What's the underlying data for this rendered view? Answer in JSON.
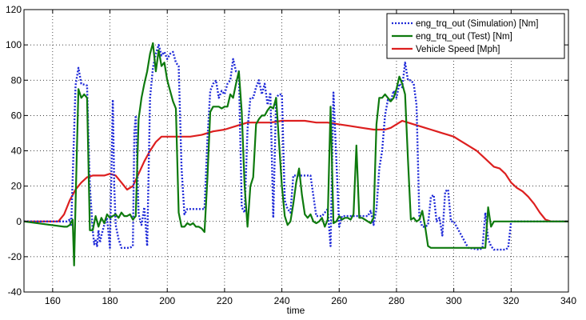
{
  "chart_data": {
    "type": "line",
    "xlabel": "time",
    "ylabel": "",
    "title": "",
    "xlim": [
      150,
      340
    ],
    "ylim": [
      -40,
      120
    ],
    "xticks": [
      160,
      180,
      200,
      220,
      240,
      260,
      280,
      300,
      320,
      340
    ],
    "yticks": [
      -40,
      -20,
      0,
      20,
      40,
      60,
      80,
      100,
      120
    ],
    "grid": true,
    "legend_position": "top-right",
    "series": [
      {
        "name": "eng_trq_out (Simulation) [Nm]",
        "color": "#1f2ad8",
        "style": "dotted",
        "x": [
          150,
          165,
          166,
          166.5,
          168,
          169,
          170,
          172,
          173,
          174,
          174.5,
          175,
          175.5,
          176,
          176.5,
          177,
          178,
          179,
          180,
          181,
          181.5,
          182,
          183,
          184,
          185,
          186,
          187,
          188,
          188.5,
          189,
          190,
          191,
          192,
          193,
          194,
          195,
          196,
          197,
          198,
          199,
          200,
          201,
          202,
          203,
          204,
          205,
          206,
          207,
          208,
          209,
          210,
          211,
          212,
          213,
          214,
          215,
          216,
          217,
          218,
          219,
          220,
          221,
          222,
          223,
          224,
          225,
          226,
          227,
          228,
          229,
          230,
          231,
          232,
          233,
          234,
          235,
          236,
          237,
          238,
          239,
          240,
          241,
          242,
          243,
          244,
          245,
          246,
          247,
          248,
          249,
          250,
          252,
          254,
          256,
          257,
          258,
          259,
          260,
          261,
          262,
          263,
          264,
          265,
          266,
          267,
          268,
          269,
          270,
          271,
          272,
          273,
          274,
          275,
          276,
          277,
          278,
          279,
          280,
          281,
          282,
          283,
          284,
          285,
          286,
          287,
          288,
          289,
          290,
          291,
          292,
          293,
          294,
          295,
          296,
          297,
          298,
          299,
          300,
          305,
          309,
          310,
          311,
          312,
          313,
          314,
          316,
          318,
          319,
          320,
          330,
          340
        ],
        "y": [
          0,
          0,
          1,
          -2,
          77,
          87,
          78,
          77,
          20,
          -5,
          -13,
          -10,
          -14,
          -5,
          -12,
          -8,
          -2,
          2,
          -15,
          69,
          20,
          -2,
          -10,
          -15,
          -15,
          -15,
          -15,
          -14,
          50,
          60,
          4,
          -2,
          8,
          -14,
          70,
          87,
          95,
          100,
          94,
          96,
          92,
          95,
          96,
          90,
          88,
          30,
          4,
          7,
          7,
          7,
          7,
          7,
          7,
          7,
          46,
          74,
          78,
          80,
          70,
          74,
          72,
          78,
          80,
          92,
          85,
          85,
          8,
          5,
          52,
          70,
          70,
          76,
          80,
          72,
          78,
          66,
          73,
          2,
          70,
          72,
          72,
          12,
          7,
          5,
          26,
          26,
          26,
          26,
          26,
          26,
          26,
          3,
          3,
          7,
          -14,
          73,
          35,
          -3,
          3,
          3,
          3,
          3,
          3,
          3,
          3,
          3,
          3,
          3,
          6,
          -2,
          7,
          30,
          40,
          60,
          69,
          68,
          74,
          70,
          78,
          76,
          90,
          80,
          80,
          78,
          66,
          2,
          -3,
          -3,
          -2,
          14,
          15,
          0,
          2,
          -8,
          17,
          18,
          0,
          0,
          -15,
          -16,
          -15,
          5,
          -10,
          -14,
          -16,
          -16,
          -16,
          -15,
          0,
          0,
          0
        ]
      },
      {
        "name": "eng_trq_out (Test) [Nm]",
        "color": "#0e7a0e",
        "style": "solid",
        "x": [
          150,
          164,
          165,
          166,
          167,
          167.5,
          168,
          169,
          170,
          171,
          172,
          173,
          174,
          175,
          176,
          177,
          178,
          179,
          180,
          181,
          182,
          183,
          184,
          185,
          186,
          187,
          188,
          189,
          190,
          191,
          192,
          193,
          194,
          195,
          196,
          197,
          198,
          199,
          200,
          201,
          202,
          203,
          204,
          205,
          206,
          207,
          208,
          209,
          210,
          211,
          212,
          213,
          214,
          215,
          216,
          217,
          218,
          219,
          220,
          221,
          222,
          223,
          224,
          225,
          226,
          227,
          228,
          229,
          230,
          231,
          232,
          233,
          234,
          235,
          236,
          237,
          238,
          239,
          240,
          241,
          242,
          243,
          244,
          245,
          246,
          247,
          248,
          249,
          250,
          251,
          252,
          253,
          254,
          255,
          256,
          257,
          258,
          259,
          260,
          261,
          262,
          263,
          264,
          265,
          266,
          267,
          268,
          269,
          270,
          271,
          272,
          273,
          274,
          275,
          276,
          277,
          278,
          279,
          280,
          281,
          282,
          283,
          284,
          285,
          286,
          287,
          288,
          289,
          290,
          291,
          292,
          293,
          294,
          295,
          296,
          297,
          298,
          299,
          300,
          305,
          309,
          310,
          311,
          312,
          313,
          314,
          320,
          330,
          340
        ],
        "y": [
          0,
          -3,
          -3,
          -2,
          1,
          -25,
          10,
          75,
          70,
          72,
          70,
          -5,
          -5,
          3,
          -3,
          2,
          -1,
          4,
          2,
          3,
          4,
          2,
          5,
          3,
          3,
          4,
          1,
          3,
          58,
          70,
          78,
          85,
          95,
          101,
          85,
          97,
          88,
          90,
          80,
          74,
          68,
          64,
          5,
          -3,
          -3,
          -1,
          -2,
          -1,
          -3,
          -3,
          -4,
          -6,
          24,
          62,
          65,
          65,
          65,
          64,
          65,
          65,
          72,
          70,
          78,
          85,
          62,
          20,
          -3,
          20,
          25,
          55,
          58,
          60,
          60,
          63,
          65,
          64,
          70,
          45,
          20,
          3,
          -2,
          0,
          10,
          22,
          30,
          15,
          4,
          2,
          4,
          0,
          -1,
          0,
          2,
          -3,
          1,
          65,
          -1,
          0,
          3,
          1,
          2,
          2,
          1,
          4,
          43,
          2,
          2,
          1,
          0,
          -1,
          2,
          55,
          70,
          70,
          72,
          70,
          68,
          70,
          75,
          82,
          78,
          72,
          35,
          1,
          2,
          0,
          1,
          6,
          -3,
          -14,
          -15,
          -15,
          -15,
          -15,
          -15,
          -15,
          -15,
          -15,
          -15,
          -15,
          -15,
          -15,
          -15,
          8,
          -3,
          0,
          0,
          0,
          0
        ]
      },
      {
        "name": "Vehicle Speed [Mph]",
        "color": "#dd1f1f",
        "style": "solid",
        "x": [
          150,
          162,
          164,
          166,
          168,
          170,
          172,
          174,
          176,
          178,
          180,
          182,
          184,
          186,
          188,
          190,
          192,
          194,
          196,
          198,
          200,
          204,
          208,
          212,
          216,
          220,
          224,
          228,
          232,
          236,
          240,
          244,
          248,
          252,
          256,
          260,
          264,
          268,
          272,
          276,
          278,
          280,
          282,
          284,
          286,
          288,
          290,
          292,
          294,
          296,
          298,
          300,
          302,
          304,
          306,
          308,
          310,
          312,
          314,
          316,
          318,
          320,
          322,
          324,
          326,
          328,
          330,
          332,
          334,
          340
        ],
        "y": [
          0,
          0,
          4,
          12,
          18,
          22,
          25,
          26,
          26,
          26,
          27,
          26,
          22,
          18,
          20,
          27,
          34,
          40,
          45,
          48,
          48,
          48,
          48,
          49,
          51,
          52,
          54,
          56,
          56,
          56,
          57,
          57,
          57,
          56,
          56,
          55,
          54,
          53,
          52,
          52,
          53,
          55,
          57,
          56,
          55,
          54,
          53,
          52,
          51,
          50,
          49,
          48,
          46,
          44,
          42,
          40,
          37,
          34,
          31,
          30,
          27,
          22,
          19,
          17,
          14,
          10,
          5,
          1,
          0,
          0
        ]
      }
    ]
  }
}
